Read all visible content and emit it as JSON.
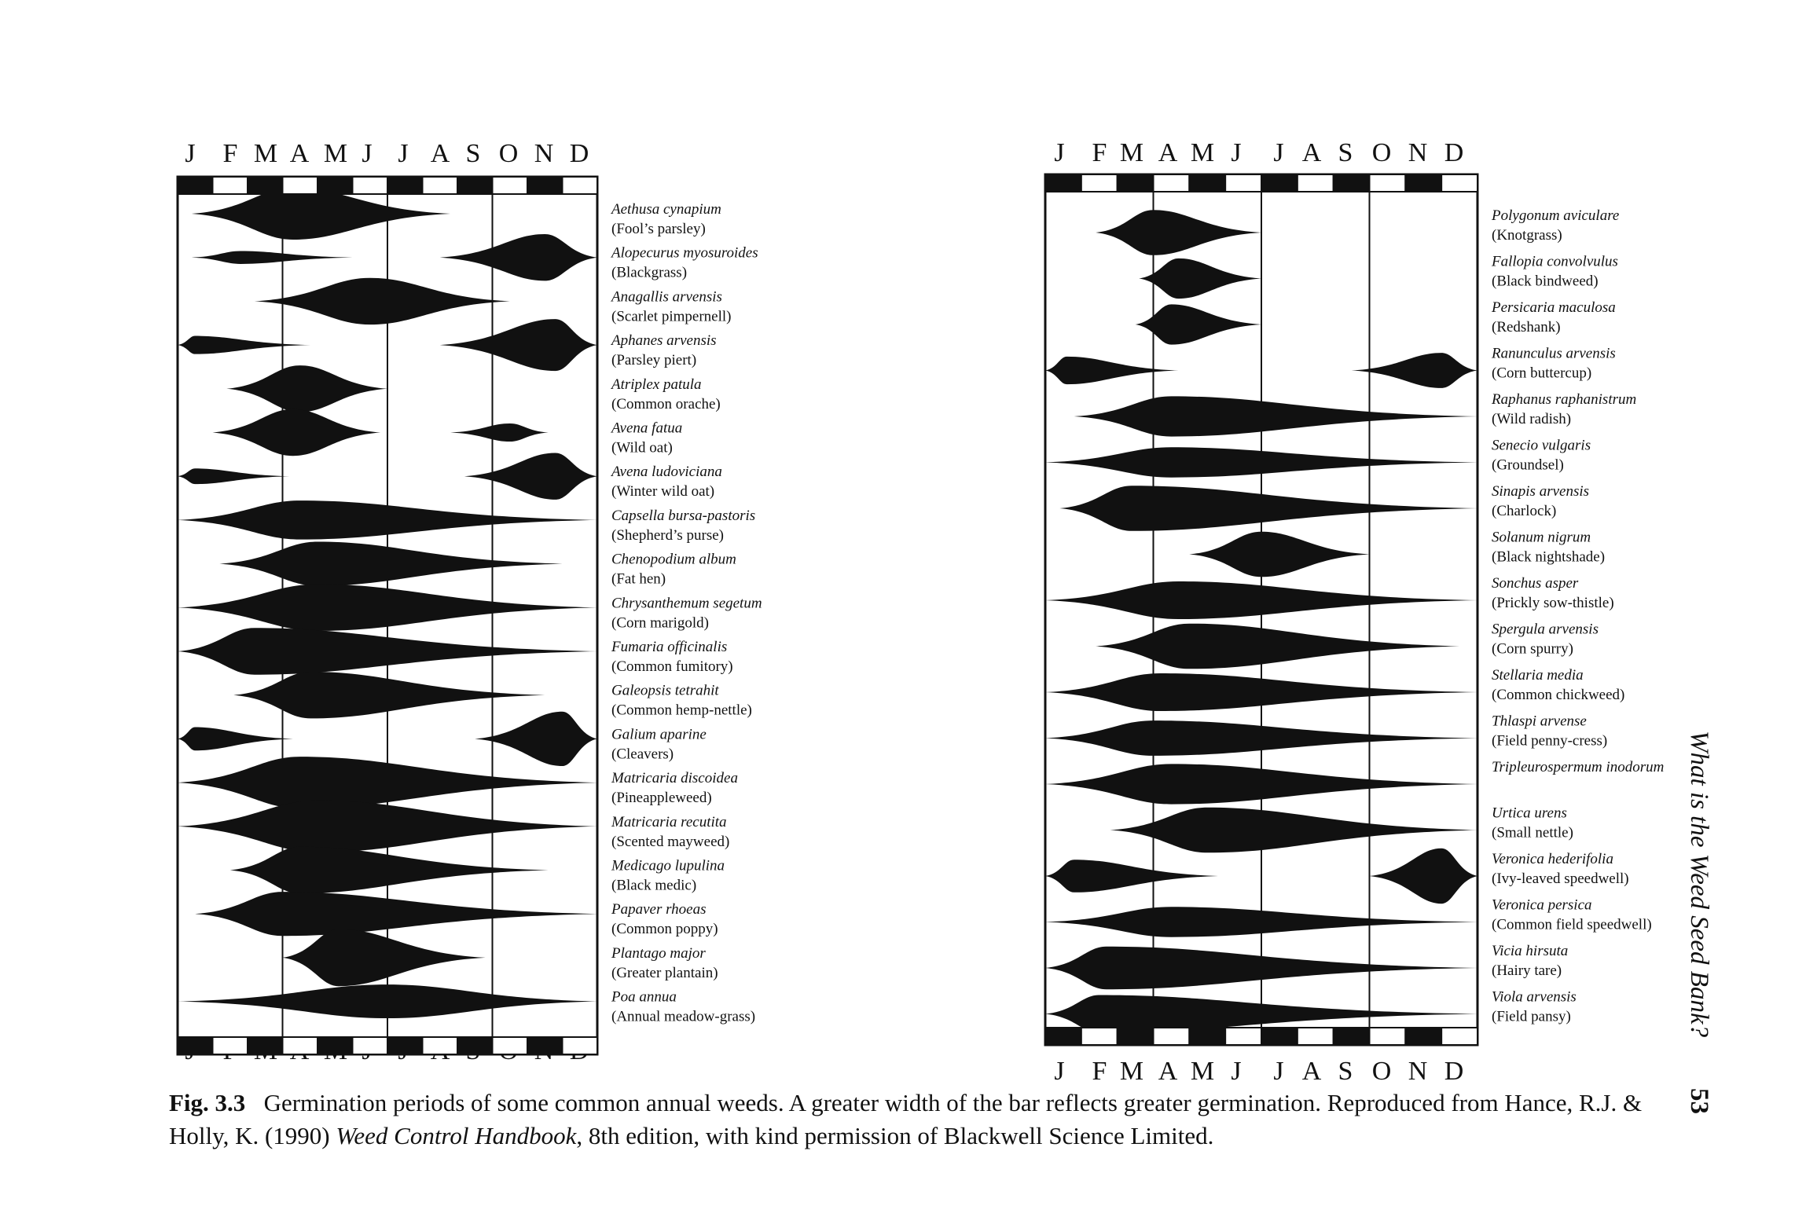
{
  "months": [
    "J",
    "F",
    "M",
    "A",
    "M",
    "J",
    "J",
    "A",
    "S",
    "O",
    "N",
    "D"
  ],
  "panels": [
    {
      "id": "left",
      "species": [
        {
          "latin": "Aethusa cynapium",
          "common": "(Fool’s parsley)"
        },
        {
          "latin": "Alopecurus myosuroides",
          "common": "(Blackgrass)"
        },
        {
          "latin": "Anagallis arvensis",
          "common": "(Scarlet pimpernell)"
        },
        {
          "latin": "Aphanes arvensis",
          "common": "(Parsley piert)"
        },
        {
          "latin": "Atriplex patula",
          "common": "(Common orache)"
        },
        {
          "latin": "Avena fatua",
          "common": "(Wild oat)"
        },
        {
          "latin": "Avena ludoviciana",
          "common": "(Winter wild oat)"
        },
        {
          "latin": "Capsella bursa-pastoris",
          "common": "(Shepherd’s purse)"
        },
        {
          "latin": "Chenopodium album",
          "common": "(Fat hen)"
        },
        {
          "latin": "Chrysanthemum segetum",
          "common": "(Corn marigold)"
        },
        {
          "latin": "Fumaria officinalis",
          "common": "(Common fumitory)"
        },
        {
          "latin": "Galeopsis tetrahit",
          "common": "(Common hemp-nettle)"
        },
        {
          "latin": "Galium aparine",
          "common": "(Cleavers)"
        },
        {
          "latin": "Matricaria discoidea",
          "common": "(Pineappleweed)"
        },
        {
          "latin": "Matricaria recutita",
          "common": "(Scented mayweed)"
        },
        {
          "latin": "Medicago lupulina",
          "common": "(Black medic)"
        },
        {
          "latin": "Papaver rhoeas",
          "common": "(Common poppy)"
        },
        {
          "latin": "Plantago major",
          "common": "(Greater plantain)"
        },
        {
          "latin": "Poa annua",
          "common": "(Annual meadow-grass)"
        }
      ]
    },
    {
      "id": "right",
      "species": [
        {
          "latin": "Polygonum aviculare",
          "common": "(Knotgrass)"
        },
        {
          "latin": "Fallopia convolvulus",
          "common": "(Black bindweed)"
        },
        {
          "latin": "Persicaria maculosa",
          "common": "(Redshank)"
        },
        {
          "latin": "Ranunculus arvensis",
          "common": "(Corn buttercup)"
        },
        {
          "latin": "Raphanus raphanistrum",
          "common": "(Wild radish)"
        },
        {
          "latin": "Senecio vulgaris",
          "common": "(Groundsel)"
        },
        {
          "latin": "Sinapis arvensis",
          "common": "(Charlock)"
        },
        {
          "latin": "Solanum nigrum",
          "common": "(Black nightshade)"
        },
        {
          "latin": "Sonchus asper",
          "common": "(Prickly sow-thistle)"
        },
        {
          "latin": "Spergula arvensis",
          "common": "(Corn spurry)"
        },
        {
          "latin": "Stellaria media",
          "common": "(Common chickweed)"
        },
        {
          "latin": "Thlaspi arvense",
          "common": "(Field penny-cress)"
        },
        {
          "latin": "Tripleurospermum inodorum",
          "common": ""
        },
        {
          "latin": "Urtica urens",
          "common": "(Small nettle)"
        },
        {
          "latin": "Veronica hederifolia",
          "common": "(Ivy-leaved speedwell)"
        },
        {
          "latin": "Veronica persica",
          "common": "(Common field speedwell)"
        },
        {
          "latin": "Vicia hirsuta",
          "common": "(Hairy tare)"
        },
        {
          "latin": "Viola arvensis",
          "common": "(Field pansy)"
        }
      ]
    }
  ],
  "chart_data": [
    {
      "type": "area",
      "panel": "left",
      "x_unit": "month (0 = start of January, 12 = end of December)",
      "series": [
        {
          "name": "Aethusa cynapium",
          "spindles": [
            {
              "start": 0.4,
              "peak": 3.3,
              "end": 7.8,
              "width": 1.0
            }
          ]
        },
        {
          "name": "Alopecurus myosuroides",
          "spindles": [
            {
              "start": 0.4,
              "peak": 1.8,
              "end": 5.0,
              "width": 0.25
            },
            {
              "start": 7.5,
              "peak": 10.5,
              "end": 12.0,
              "width": 0.9
            }
          ]
        },
        {
          "name": "Anagallis arvensis",
          "spindles": [
            {
              "start": 2.2,
              "peak": 5.5,
              "end": 9.5,
              "width": 0.9
            }
          ]
        },
        {
          "name": "Aphanes arvensis",
          "spindles": [
            {
              "start": 0.0,
              "peak": 0.5,
              "end": 3.8,
              "width": 0.35
            },
            {
              "start": 7.5,
              "peak": 10.8,
              "end": 12.0,
              "width": 1.0
            }
          ]
        },
        {
          "name": "Atriplex patula",
          "spindles": [
            {
              "start": 1.4,
              "peak": 3.5,
              "end": 6.0,
              "width": 0.9
            }
          ]
        },
        {
          "name": "Avena fatua",
          "spindles": [
            {
              "start": 1.0,
              "peak": 3.3,
              "end": 5.8,
              "width": 0.9
            },
            {
              "start": 7.8,
              "peak": 9.5,
              "end": 10.6,
              "width": 0.35
            }
          ]
        },
        {
          "name": "Avena ludoviciana",
          "spindles": [
            {
              "start": 0.0,
              "peak": 0.5,
              "end": 3.2,
              "width": 0.3
            },
            {
              "start": 8.2,
              "peak": 10.8,
              "end": 12.0,
              "width": 0.9
            }
          ]
        },
        {
          "name": "Capsella bursa-pastoris",
          "spindles": [
            {
              "start": 0.0,
              "peak": 3.5,
              "end": 12.0,
              "width": 0.75
            }
          ]
        },
        {
          "name": "Chenopodium album",
          "spindles": [
            {
              "start": 1.2,
              "peak": 4.0,
              "end": 11.0,
              "width": 0.85
            }
          ]
        },
        {
          "name": "Chrysanthemum segetum",
          "spindles": [
            {
              "start": 0.0,
              "peak": 4.0,
              "end": 12.0,
              "width": 0.9
            }
          ]
        },
        {
          "name": "Fumaria officinalis",
          "spindles": [
            {
              "start": 0.0,
              "peak": 2.2,
              "end": 12.0,
              "width": 0.9
            }
          ]
        },
        {
          "name": "Galeopsis tetrahit",
          "spindles": [
            {
              "start": 1.6,
              "peak": 3.8,
              "end": 10.5,
              "width": 0.9
            }
          ]
        },
        {
          "name": "Galium aparine",
          "spindles": [
            {
              "start": 0.0,
              "peak": 0.5,
              "end": 3.3,
              "width": 0.45
            },
            {
              "start": 8.5,
              "peak": 11.0,
              "end": 12.0,
              "width": 1.05
            }
          ]
        },
        {
          "name": "Matricaria discoidea",
          "spindles": [
            {
              "start": 0.0,
              "peak": 3.5,
              "end": 12.0,
              "width": 1.0
            }
          ]
        },
        {
          "name": "Matricaria recutita",
          "spindles": [
            {
              "start": 0.0,
              "peak": 4.0,
              "end": 12.0,
              "width": 1.0
            }
          ]
        },
        {
          "name": "Medicago lupulina",
          "spindles": [
            {
              "start": 1.5,
              "peak": 3.5,
              "end": 10.6,
              "width": 0.9
            }
          ]
        },
        {
          "name": "Papaver rhoeas",
          "spindles": [
            {
              "start": 0.5,
              "peak": 3.0,
              "end": 12.0,
              "width": 0.85
            }
          ]
        },
        {
          "name": "Plantago major",
          "spindles": [
            {
              "start": 3.0,
              "peak": 4.6,
              "end": 8.8,
              "width": 1.1
            }
          ]
        },
        {
          "name": "Poa annua",
          "spindles": [
            {
              "start": 0.0,
              "peak": 6.0,
              "end": 12.0,
              "width": 0.65
            }
          ]
        }
      ]
    },
    {
      "type": "area",
      "panel": "right",
      "x_unit": "month (0 = start of January, 12 = end of December)",
      "series": [
        {
          "name": "Polygonum aviculare",
          "spindles": [
            {
              "start": 1.4,
              "peak": 3.0,
              "end": 6.0,
              "width": 0.9
            }
          ]
        },
        {
          "name": "Fallopia convolvulus",
          "spindles": [
            {
              "start": 2.6,
              "peak": 3.7,
              "end": 6.0,
              "width": 0.8
            }
          ]
        },
        {
          "name": "Persicaria maculosa",
          "spindles": [
            {
              "start": 2.5,
              "peak": 3.5,
              "end": 6.0,
              "width": 0.8
            }
          ]
        },
        {
          "name": "Ranunculus arvensis",
          "spindles": [
            {
              "start": 0.0,
              "peak": 0.6,
              "end": 3.7,
              "width": 0.55
            },
            {
              "start": 8.5,
              "peak": 11.0,
              "end": 12.0,
              "width": 0.7
            }
          ]
        },
        {
          "name": "Raphanus raphanistrum",
          "spindles": [
            {
              "start": 0.8,
              "peak": 3.5,
              "end": 12.0,
              "width": 0.8
            }
          ]
        },
        {
          "name": "Senecio vulgaris",
          "spindles": [
            {
              "start": 0.0,
              "peak": 3.5,
              "end": 12.0,
              "width": 0.6
            }
          ]
        },
        {
          "name": "Sinapis arvensis",
          "spindles": [
            {
              "start": 0.4,
              "peak": 2.4,
              "end": 12.0,
              "width": 0.9
            }
          ]
        },
        {
          "name": "Solanum nigrum",
          "spindles": [
            {
              "start": 4.0,
              "peak": 6.0,
              "end": 9.0,
              "width": 0.9
            }
          ]
        },
        {
          "name": "Sonchus asper",
          "spindles": [
            {
              "start": 0.0,
              "peak": 3.7,
              "end": 12.0,
              "width": 0.75
            }
          ]
        },
        {
          "name": "Spergula arvensis",
          "spindles": [
            {
              "start": 1.4,
              "peak": 4.0,
              "end": 11.5,
              "width": 0.9
            }
          ]
        },
        {
          "name": "Stellaria media",
          "spindles": [
            {
              "start": 0.0,
              "peak": 3.2,
              "end": 12.0,
              "width": 0.75
            }
          ]
        },
        {
          "name": "Thlaspi arvense",
          "spindles": [
            {
              "start": 0.0,
              "peak": 3.0,
              "end": 12.0,
              "width": 0.7
            }
          ]
        },
        {
          "name": "Tripleurospermum inodorum",
          "spindles": [
            {
              "start": 0.0,
              "peak": 3.5,
              "end": 12.0,
              "width": 0.8
            }
          ]
        },
        {
          "name": "Urtica urens",
          "spindles": [
            {
              "start": 1.8,
              "peak": 4.5,
              "end": 12.0,
              "width": 0.9
            }
          ]
        },
        {
          "name": "Veronica hederifolia",
          "spindles": [
            {
              "start": 0.0,
              "peak": 0.8,
              "end": 4.8,
              "width": 0.65
            },
            {
              "start": 9.0,
              "peak": 11.0,
              "end": 12.0,
              "width": 1.1
            }
          ]
        },
        {
          "name": "Veronica persica",
          "spindles": [
            {
              "start": 0.0,
              "peak": 3.5,
              "end": 12.0,
              "width": 0.6
            }
          ]
        },
        {
          "name": "Vicia hirsuta",
          "spindles": [
            {
              "start": 0.0,
              "peak": 1.7,
              "end": 12.0,
              "width": 0.85
            }
          ]
        },
        {
          "name": "Viola arvensis",
          "spindles": [
            {
              "start": 0.0,
              "peak": 1.5,
              "end": 12.0,
              "width": 0.75
            }
          ]
        }
      ]
    }
  ],
  "caption": {
    "label": "Fig. 3.3",
    "text": "Germination periods of some common annual weeds. A greater width of the bar reflects greater germination. Reproduced from Hance, R.J. & Holly, K. (1990) ",
    "book": "Weed Control Handbook",
    "text_end": ", 8th edition, with kind permission of Blackwell Science Limited."
  },
  "running_head": "What is the Weed Seed Bank?",
  "page_number": "53"
}
